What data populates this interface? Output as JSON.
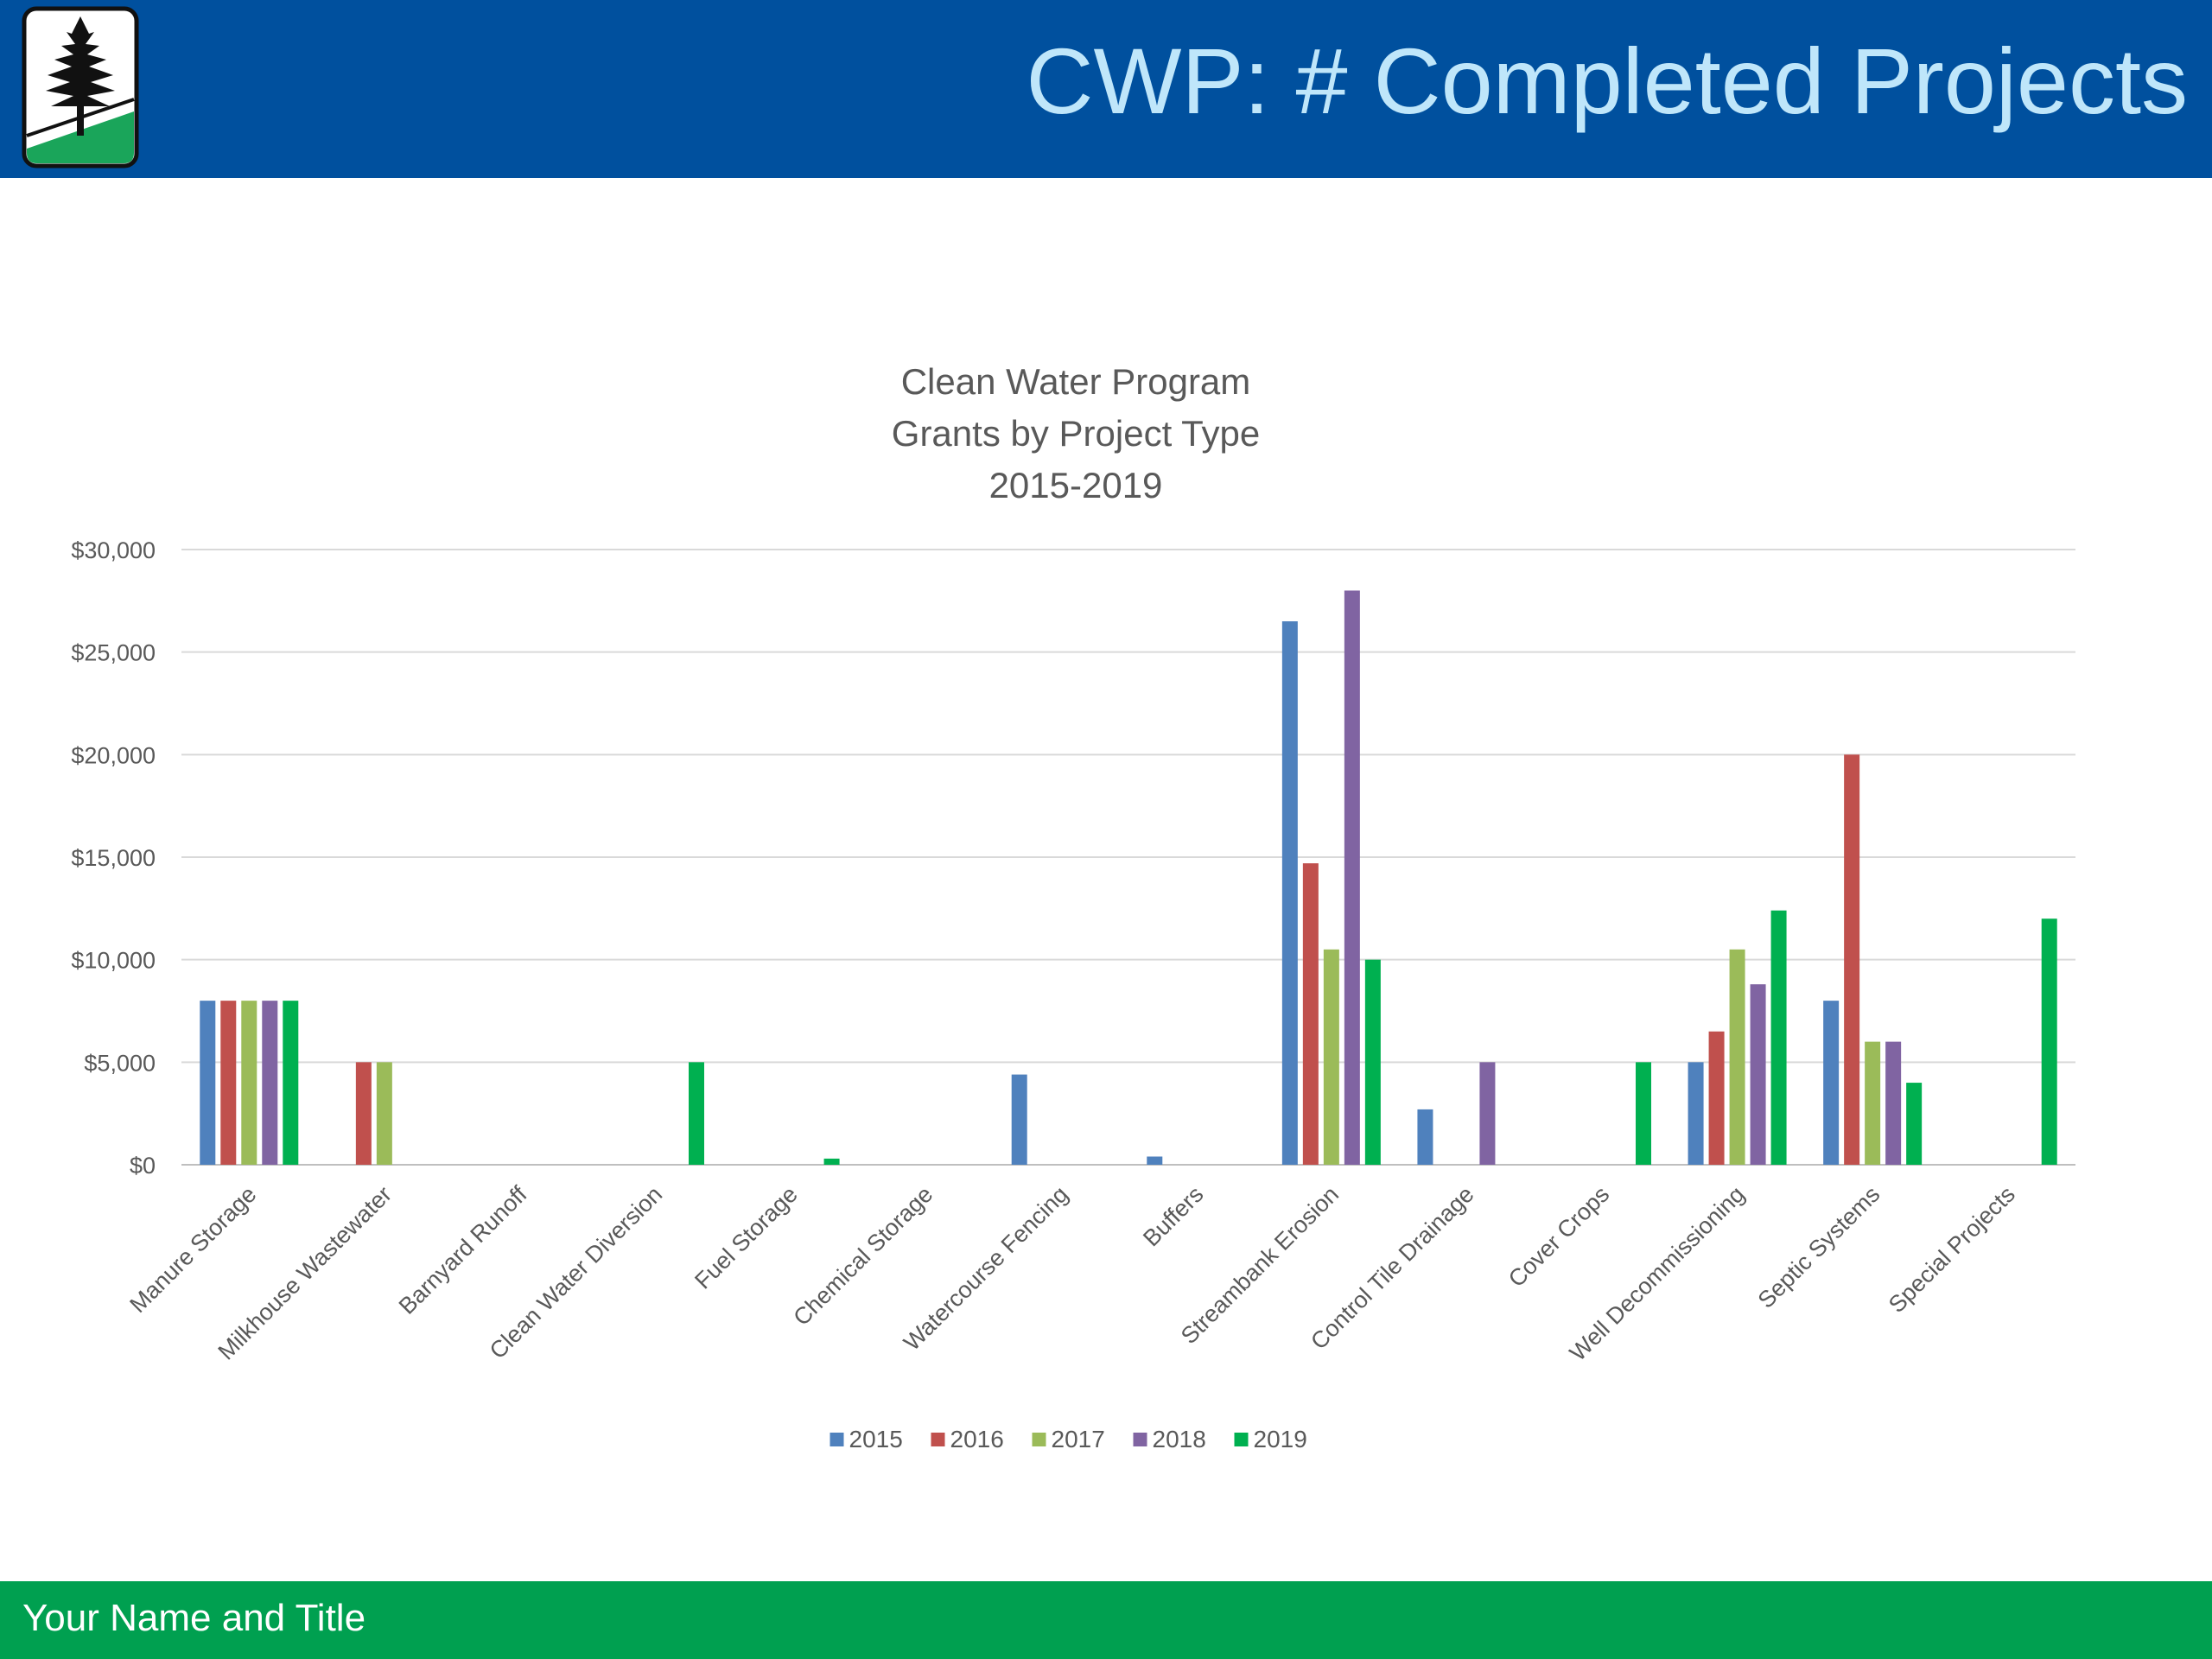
{
  "header": {
    "title": "CWP: # Completed Projects",
    "logo": "pine-tree-logo"
  },
  "footer": {
    "text": "Your Name and Title"
  },
  "colors": {
    "header_bg": "#00509e",
    "header_text": "#bfe6fa",
    "footer_bg": "#00a050",
    "logo_green": "#1aa55a"
  },
  "chart_data": {
    "type": "bar",
    "title": [
      "Clean Water Program",
      "Grants by Project Type",
      "2015-2019"
    ],
    "xlabel": "",
    "ylabel": "",
    "ylim": [
      0,
      30000
    ],
    "y_ticks": [
      "$0",
      "$5,000",
      "$10,000",
      "$15,000",
      "$20,000",
      "$25,000",
      "$30,000"
    ],
    "grid": true,
    "legend_position": "bottom",
    "categories": [
      "Manure Storage",
      "Milkhouse Wastewater",
      "Barnyard Runoff",
      "Clean Water Diversion",
      "Fuel Storage",
      "Chemical Storage",
      "Watercourse Fencing",
      "Buffers",
      "Streambank Erosion",
      "Control Tile Drainage",
      "Cover Crops",
      "Well Decommissioning",
      "Septic Systems",
      "Special Projects"
    ],
    "series": [
      {
        "name": "2015",
        "color": "#4f81bd",
        "values": [
          8000,
          0,
          0,
          0,
          0,
          0,
          4400,
          400,
          26500,
          2700,
          0,
          5000,
          8000,
          0
        ]
      },
      {
        "name": "2016",
        "color": "#c0504d",
        "values": [
          8000,
          5000,
          0,
          0,
          0,
          0,
          0,
          0,
          14700,
          0,
          0,
          6500,
          20000,
          0
        ]
      },
      {
        "name": "2017",
        "color": "#9bbb59",
        "values": [
          8000,
          5000,
          0,
          0,
          0,
          0,
          0,
          0,
          10500,
          0,
          0,
          10500,
          6000,
          0
        ]
      },
      {
        "name": "2018",
        "color": "#8064a2",
        "values": [
          8000,
          0,
          0,
          0,
          0,
          0,
          0,
          0,
          28000,
          5000,
          0,
          8800,
          6000,
          0
        ]
      },
      {
        "name": "2019",
        "color": "#00b050",
        "values": [
          8000,
          0,
          0,
          5000,
          300,
          0,
          0,
          0,
          10000,
          0,
          5000,
          12400,
          4000,
          12000
        ]
      }
    ]
  }
}
